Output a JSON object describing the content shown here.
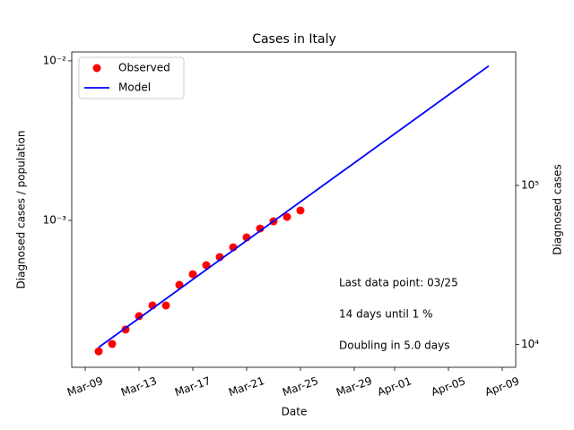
{
  "chart_data": {
    "type": "line",
    "title": "Cases in Italy",
    "xlabel": "Date",
    "ylabel": "Diagnosed cases / population",
    "y2label": "Diagnosed cases",
    "yscale": "log",
    "xlim": [
      "Mar-08",
      "Apr-10"
    ],
    "xticks": [
      "Mar-09",
      "Mar-13",
      "Mar-17",
      "Mar-21",
      "Mar-25",
      "Mar-29",
      "Apr-01",
      "Apr-05",
      "Apr-09"
    ],
    "ylim": [
      0.00012,
      0.01137
    ],
    "yticks": [
      {
        "value": 0.001,
        "label": "10⁻³"
      },
      {
        "value": 0.01,
        "label": "10⁻²"
      }
    ],
    "y2lim": [
      7200,
      690000
    ],
    "y2ticks": [
      {
        "value": 10000,
        "label": "10⁴"
      },
      {
        "value": 100000,
        "label": "10⁵"
      }
    ],
    "legend": "upper left",
    "series": [
      {
        "name": "Observed",
        "color": "#ff0000",
        "marker": "o",
        "x": [
          "Mar-10",
          "Mar-11",
          "Mar-12",
          "Mar-13",
          "Mar-14",
          "Mar-15",
          "Mar-16",
          "Mar-17",
          "Mar-18",
          "Mar-19",
          "Mar-20",
          "Mar-21",
          "Mar-22",
          "Mar-23",
          "Mar-24",
          "Mar-25"
        ],
        "values": [
          0.000151,
          0.000168,
          0.000207,
          0.000251,
          0.000293,
          0.000293,
          0.000394,
          0.00046,
          0.000524,
          0.000589,
          0.000678,
          0.000782,
          0.000889,
          0.000987,
          0.001052,
          0.001153
        ]
      },
      {
        "name": "Model",
        "color": "#0000ff",
        "marker": "none",
        "x": [
          "Mar-10",
          "Apr-08"
        ],
        "values": [
          0.00016,
          0.0093
        ]
      }
    ],
    "annotations": [
      "Last data point: 03/25",
      "14 days until 1 %",
      "Doubling in 5.0 days"
    ]
  }
}
